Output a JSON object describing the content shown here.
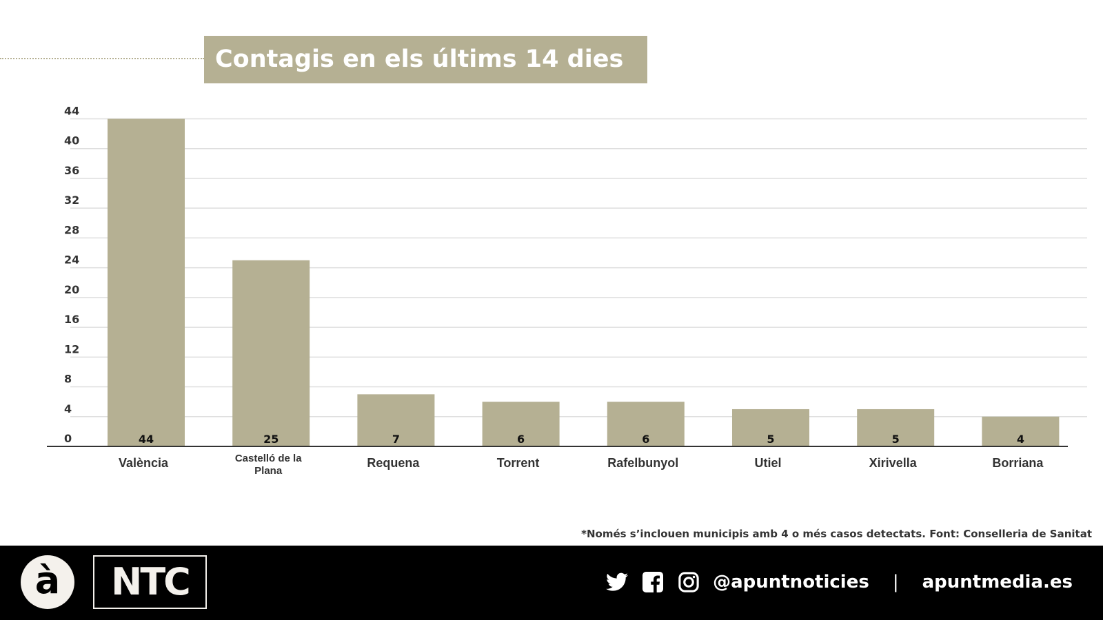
{
  "chart_data": {
    "type": "bar",
    "title": "Contagis en els últims 14 dies",
    "categories": [
      "València",
      "Castelló de la Plana",
      "Requena",
      "Torrent",
      "Rafelbunyol",
      "Utiel",
      "Xirivella",
      "Borriana"
    ],
    "values": [
      44,
      25,
      7,
      6,
      6,
      5,
      5,
      4
    ],
    "yticks": [
      0,
      4,
      8,
      12,
      16,
      20,
      24,
      28,
      32,
      36,
      40,
      44
    ],
    "ylim": [
      0,
      44
    ],
    "grid": true,
    "data_labels": true,
    "bar_color": "#b5b093"
  },
  "footnote": "*Només s’inclouen municipis amb 4 o més casos detectats. Font: Conselleria de Sanitat",
  "footer": {
    "logo": "à",
    "brand": "NTC",
    "icons": [
      "twitter-icon",
      "facebook-icon",
      "instagram-icon"
    ],
    "handle": "@apuntnoticies",
    "separator": "|",
    "website": "apuntmedia.es"
  }
}
